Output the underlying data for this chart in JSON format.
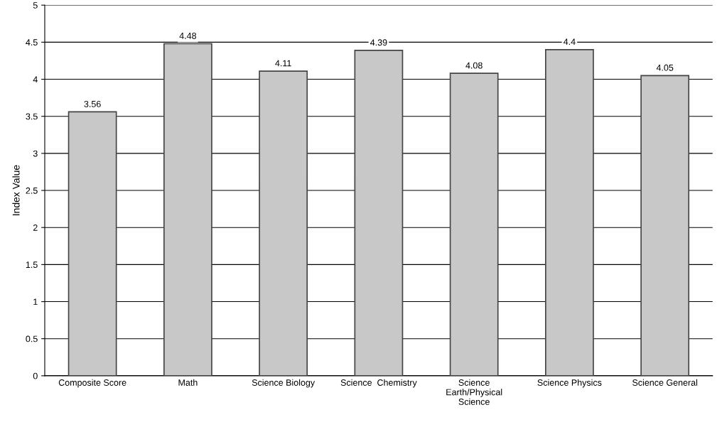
{
  "chart_data": {
    "type": "bar",
    "categories": [
      "Composite Score",
      "Math",
      "Science Biology",
      "Science  Chemistry",
      "Science\nEarth/Physical\nScience",
      "Science Physics",
      "Science General"
    ],
    "values": [
      3.56,
      4.48,
      4.11,
      4.39,
      4.08,
      4.4,
      4.05
    ],
    "color": "#c8c8c8",
    "ylabel": "Index Value",
    "ylim": [
      0,
      5
    ],
    "yticks": [
      0,
      0.5,
      1,
      1.5,
      2,
      2.5,
      3,
      3.5,
      4,
      4.5,
      5
    ],
    "grid": "y",
    "data_labels": true
  }
}
